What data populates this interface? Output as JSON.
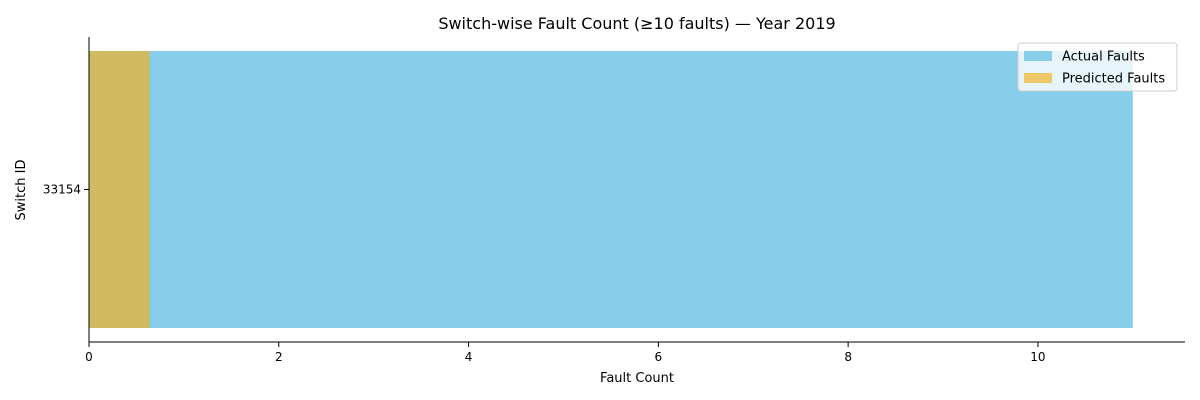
{
  "chart_data": {
    "type": "bar",
    "orientation": "horizontal",
    "title": "Switch-wise Fault Count (≥10 faults) — Year 2019",
    "xlabel": "Fault Count",
    "ylabel": "Switch ID",
    "categories": [
      "33154"
    ],
    "series": [
      {
        "name": "Actual Faults",
        "values": [
          11
        ],
        "color": "#87CEEB",
        "opacity": 1
      },
      {
        "name": "Predicted Faults",
        "values": [
          0.64
        ],
        "color": "#F0B429",
        "opacity": 0.7
      }
    ],
    "xlim": [
      0,
      11.55
    ],
    "xticks": [
      0,
      2,
      4,
      6,
      8,
      10
    ],
    "grid": false,
    "legend": "top-right"
  }
}
